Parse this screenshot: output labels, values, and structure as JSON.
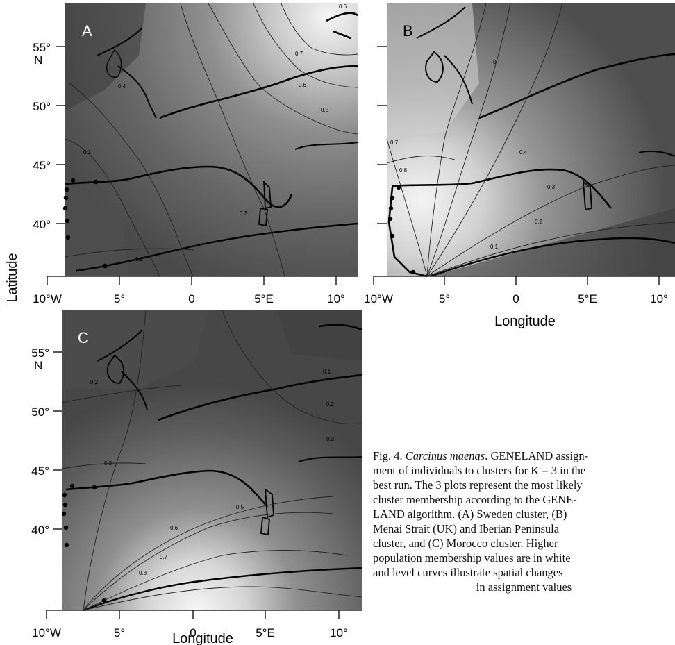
{
  "panels": [
    {
      "id": "A",
      "letter": "A"
    },
    {
      "id": "B",
      "letter": "B"
    },
    {
      "id": "C",
      "letter": "C"
    }
  ],
  "latitude_ticks": [
    "55°",
    "50°",
    "45°",
    "40°"
  ],
  "n_label": "N",
  "longitude_ticks": [
    "10°W",
    "5°",
    "0",
    "5°E",
    "10°"
  ],
  "y_axis_label": "Latitude",
  "x_axis_label": "Longitude",
  "contour_labels": {
    "A": [
      "0.7",
      "0.6",
      "0.5",
      "0.1",
      "0.3",
      "0.2",
      "0.6",
      "0.4"
    ],
    "B": [
      "0.7",
      "0.8",
      "0.4",
      "0.3",
      "0.2",
      "0.1",
      "0"
    ],
    "C": [
      "0.2",
      "0.1",
      "0.2",
      "0.3",
      "0.2",
      "0.5",
      "0.6",
      "0.7",
      "0.8"
    ]
  },
  "caption": {
    "prefix": "Fig. 4.",
    "species": "Carcinus maenas",
    "lines": [
      ". GENELAND assign-",
      "ment of individuals to clusters for K = 3 in the",
      "best run. The 3 plots represent the most likely",
      "cluster membership according to the GENE-",
      "LAND algorithm. (A) Sweden cluster, (B)",
      "Menai Strait (UK) and Iberian Peninsula",
      "cluster, and (C) Morocco cluster. Higher",
      "population membership values are in white",
      "and level curves illustrate spatial changes"
    ],
    "last_line": "in assignment values"
  },
  "colors": {
    "dark": "#3a3a3a",
    "mid": "#707070",
    "light": "#bdbdbd",
    "white": "#f2f2f2"
  }
}
